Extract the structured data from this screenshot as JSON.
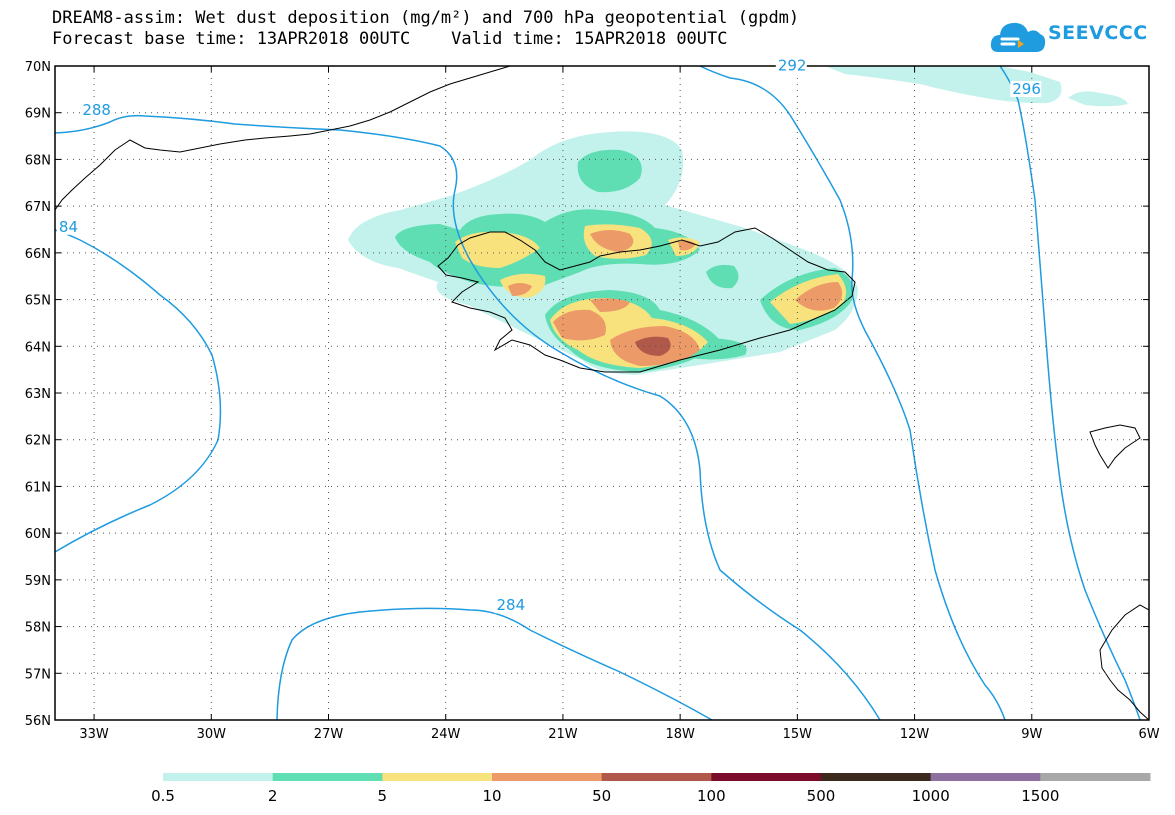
{
  "title": {
    "line1": "DREAM8-assim: Wet dust deposition (mg/m²) and 700 hPa geopotential (gpdm)",
    "line2": "Forecast base time: 13APR2018 00UTC    Valid time: 15APR2018 00UTC"
  },
  "logo": {
    "text": "SEEVCCC",
    "icon": "cloud-icon"
  },
  "map": {
    "lon_range": [
      -34,
      -6
    ],
    "lat_range": [
      56,
      70
    ],
    "lon_ticks": [
      {
        "value": -33,
        "label": "33W"
      },
      {
        "value": -30,
        "label": "30W"
      },
      {
        "value": -27,
        "label": "27W"
      },
      {
        "value": -24,
        "label": "24W"
      },
      {
        "value": -21,
        "label": "21W"
      },
      {
        "value": -18,
        "label": "18W"
      },
      {
        "value": -15,
        "label": "15W"
      },
      {
        "value": -12,
        "label": "12W"
      },
      {
        "value": -9,
        "label": "9W"
      },
      {
        "value": -6,
        "label": "6W"
      }
    ],
    "lat_ticks": [
      {
        "value": 70,
        "label": "70N"
      },
      {
        "value": 69,
        "label": "69N"
      },
      {
        "value": 68,
        "label": "68N"
      },
      {
        "value": 67,
        "label": "67N"
      },
      {
        "value": 66,
        "label": "66N"
      },
      {
        "value": 65,
        "label": "65N"
      },
      {
        "value": 64,
        "label": "64N"
      },
      {
        "value": 63,
        "label": "63N"
      },
      {
        "value": 62,
        "label": "62N"
      },
      {
        "value": 61,
        "label": "61N"
      },
      {
        "value": 60,
        "label": "60N"
      },
      {
        "value": 59,
        "label": "59N"
      },
      {
        "value": 58,
        "label": "58N"
      },
      {
        "value": 57,
        "label": "57N"
      },
      {
        "value": 56,
        "label": "56N"
      }
    ],
    "grid": true,
    "contour_labels": [
      {
        "text": "288",
        "lon": -33.3,
        "lat": 68.95
      },
      {
        "text": "292",
        "lon": -15.5,
        "lat": 69.9
      },
      {
        "text": "296",
        "lon": -9.5,
        "lat": 69.4
      },
      {
        "text": "284",
        "lon": -22.7,
        "lat": 58.35
      },
      {
        "text": "84",
        "lon": -33.9,
        "lat": 66.45
      }
    ],
    "colors": {
      "contour": "#1f9be0"
    }
  },
  "colorbar": {
    "labels": [
      "0.5",
      "2",
      "5",
      "10",
      "50",
      "100",
      "500",
      "1000",
      "1500"
    ],
    "colors": [
      "#c3f2ec",
      "#5edeb2",
      "#f7e27e",
      "#ec9a68",
      "#b0584a",
      "#7c0d2a",
      "#3d2a1e",
      "#8e6fa0",
      "#a8a8a8"
    ]
  }
}
